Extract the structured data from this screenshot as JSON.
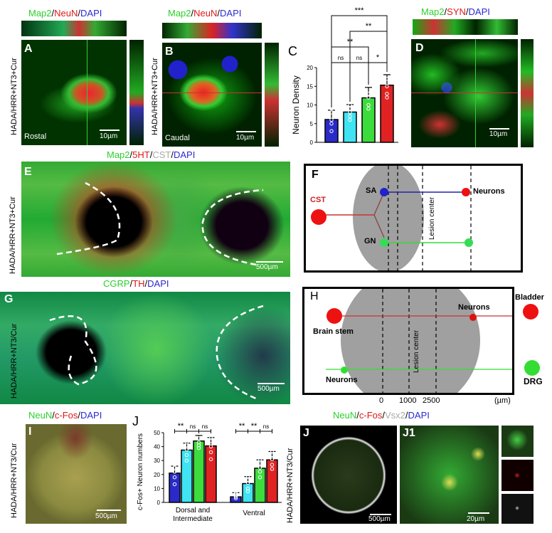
{
  "panelA": {
    "letter": "A",
    "title": [
      "Map2",
      "/",
      "NeuN",
      "/",
      "DAPI"
    ],
    "side_label": "HADA/HRR+NT3+Cur",
    "region": "Rostal",
    "scale": "10µm"
  },
  "panelB": {
    "letter": "B",
    "title": [
      "Map2",
      "/",
      "NeuN",
      "/",
      "DAPI"
    ],
    "side_label": "HADA/HRR+NT3+Cur",
    "region": "Caudal",
    "scale": "10µm"
  },
  "panelD": {
    "letter": "D",
    "title": [
      "Map2",
      "/",
      "SYN",
      "/",
      "DAPI"
    ],
    "scale": "10µm"
  },
  "panelE": {
    "letter": "E",
    "title": [
      "Map2",
      "/",
      "5HT",
      "/",
      "CST",
      "/",
      "DAPI"
    ],
    "side_label": "HADA/HRR+NT3+Cur",
    "scale": "500µm"
  },
  "panelG": {
    "letter": "G",
    "title": [
      "CGRP",
      "/",
      "TH",
      "/",
      "DAPI"
    ],
    "side_label": "HADA/HRR+NT3/Cur",
    "scale": "500µm"
  },
  "panelI": {
    "letter": "I",
    "title": [
      "NeuN",
      "/",
      "c-Fos",
      "/",
      "DAPI"
    ],
    "side_label": "HADA/HRR+NT3/Cur",
    "scale": "500µm"
  },
  "panelJimg": {
    "letter": "J",
    "letter2": "J1",
    "title": [
      "NeuN",
      "/",
      "c-Fos",
      "/",
      "Vsx2",
      "/",
      "DAPI"
    ],
    "side_label": "HADA/HRR+NT3/Cur",
    "scale": "500µm",
    "scale2": "20µm"
  },
  "panelF": {
    "letter": "F",
    "cst": "CST",
    "sa": "SA",
    "gn": "GN",
    "neurons": "Neurons",
    "lesion": "Lesion center"
  },
  "panelH": {
    "letter": "H",
    "brainstem": "Brain stem",
    "neurons_top": "Neurons",
    "bladder": "Bladder",
    "neurons_bottom": "Neurons",
    "drg": "DRG",
    "lesion": "Lesion center",
    "axis": [
      "0",
      "1000",
      "2500"
    ],
    "unit": "(µm)"
  },
  "colors": {
    "blue": "#2a2ac8",
    "cyan": "#3fe3f2",
    "green": "#3ddc3d",
    "red": "#e02222"
  },
  "chart_data": [
    {
      "panel": "C",
      "type": "bar",
      "ylabel": "Neuron Density",
      "ylim": [
        0,
        20
      ],
      "yticks": [
        0,
        5,
        10,
        15,
        20
      ],
      "values": [
        6.1,
        8.1,
        11.9,
        15.3
      ],
      "errors": [
        2.5,
        2.0,
        2.8,
        2.8
      ],
      "points": [
        [
          3,
          5,
          6,
          8,
          9
        ],
        [
          6,
          7,
          8,
          9,
          10
        ],
        [
          9,
          10,
          12,
          13,
          16
        ],
        [
          12,
          13,
          15,
          17,
          19
        ]
      ],
      "significance": [
        {
          "pair": [
            0,
            1
          ],
          "label": "ns"
        },
        {
          "pair": [
            1,
            2
          ],
          "label": "ns"
        },
        {
          "pair": [
            2,
            3
          ],
          "label": "*"
        },
        {
          "pair": [
            0,
            2
          ],
          "label": "**"
        },
        {
          "pair": [
            1,
            3
          ],
          "label": "**"
        },
        {
          "pair": [
            0,
            3
          ],
          "label": "***"
        }
      ]
    },
    {
      "panel": "J",
      "type": "bar",
      "ylabel": "c-Fos+ Neuron numbers",
      "ylim": [
        0,
        50
      ],
      "yticks": [
        0,
        10,
        20,
        30,
        40,
        50
      ],
      "categories": [
        "Dorsal and Intermediate",
        "Ventral"
      ],
      "groups": [
        {
          "values": [
            21,
            37.5,
            44,
            40.5
          ],
          "errors": [
            5,
            5,
            4,
            6
          ],
          "points": [
            [
              13,
              18,
              22,
              25,
              27
            ],
            [
              30,
              34,
              38,
              41,
              43
            ],
            [
              39,
              41,
              43,
              46,
              51
            ],
            [
              31,
              36,
              40,
              44,
              47
            ]
          ],
          "significance": [
            "**",
            "ns",
            "ns"
          ]
        },
        {
          "values": [
            4,
            13.5,
            24.5,
            30.5
          ],
          "errors": [
            3,
            5,
            6,
            6
          ],
          "points": [
            [
              3,
              4,
              5,
              6,
              7
            ],
            [
              8,
              10,
              14,
              16,
              19
            ],
            [
              18,
              22,
              25,
              28,
              31
            ],
            [
              24,
              27,
              31,
              34,
              37
            ]
          ],
          "significance": [
            "**",
            "**",
            "ns"
          ]
        }
      ]
    }
  ]
}
